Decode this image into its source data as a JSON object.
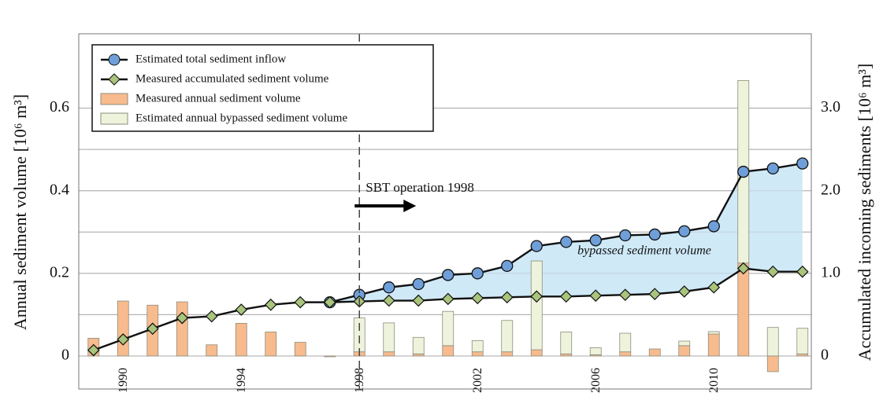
{
  "chart_data": {
    "type": "combo",
    "ylabel": "Annual sediment volume [10⁶ m³]",
    "y2label": "Accumulated incoming sediments [10⁶ m³]",
    "x": [
      1989,
      1990,
      1991,
      1992,
      1993,
      1994,
      1995,
      1996,
      1997,
      1998,
      1999,
      2000,
      2001,
      2002,
      2003,
      2004,
      2005,
      2006,
      2007,
      2008,
      2009,
      2010,
      2011,
      2012,
      2013
    ],
    "xlim": [
      1988.5,
      2013.3
    ],
    "xticks": [
      1990,
      1994,
      1998,
      2002,
      2006,
      2010
    ],
    "ylim": [
      -0.08,
      0.78
    ],
    "yticks": [
      0,
      0.2,
      0.4,
      0.6
    ],
    "minor_yticks": [
      0.1,
      0.3,
      0.5
    ],
    "y2lim": [
      -0.4,
      3.9
    ],
    "y2ticks": [
      0,
      {
        "value": 1,
        "label": "1.0"
      },
      {
        "value": 2,
        "label": "2.0"
      },
      {
        "value": 3,
        "label": "3.0"
      }
    ],
    "grid": true,
    "legend": "top-left",
    "series": [
      {
        "name": "Estimated total sediment inflow",
        "type": "line",
        "marker": "circle",
        "axis": "y2",
        "color": "#6f9fd8",
        "values": [
          null,
          null,
          null,
          null,
          null,
          null,
          null,
          null,
          0.65,
          0.74,
          0.83,
          0.87,
          0.98,
          1.0,
          1.09,
          1.33,
          1.38,
          1.4,
          1.46,
          1.47,
          1.51,
          1.57,
          2.23,
          2.27,
          2.33
        ]
      },
      {
        "name": "Measured accumulated sediment volume",
        "type": "line",
        "marker": "diamond",
        "axis": "y2",
        "color": "#a9c47c",
        "values": [
          0.07,
          0.2,
          0.33,
          0.46,
          0.48,
          0.56,
          0.62,
          0.65,
          0.65,
          0.66,
          0.67,
          0.67,
          0.69,
          0.7,
          0.71,
          0.72,
          0.72,
          0.73,
          0.74,
          0.75,
          0.78,
          0.83,
          1.06,
          1.02,
          1.02
        ]
      },
      {
        "name": "Measured annual sediment volume",
        "type": "bar",
        "axis": "y",
        "color": "#f7bb8e",
        "values": [
          0.043,
          0.133,
          0.123,
          0.131,
          0.027,
          0.079,
          0.058,
          0.033,
          -0.002,
          0.01,
          0.01,
          0.005,
          0.025,
          0.01,
          0.01,
          0.015,
          0.005,
          0.003,
          0.01,
          0.017,
          0.025,
          0.053,
          0.225,
          -0.038,
          0.005
        ]
      },
      {
        "name": "Estimated annual bypassed sediment volume",
        "type": "bar",
        "axis": "y",
        "color": "#eef3dc",
        "values": [
          null,
          null,
          null,
          null,
          null,
          null,
          null,
          null,
          null,
          0.082,
          0.07,
          0.04,
          0.083,
          0.027,
          0.076,
          0.215,
          0.053,
          0.017,
          0.045,
          0,
          0.011,
          0.006,
          0.442,
          0.069,
          0.062
        ]
      }
    ],
    "band": {
      "color": "#cfe9f7",
      "between": [
        0,
        1
      ]
    },
    "annotations": [
      {
        "text": "SBT operation 1998",
        "x": 1998
      },
      {
        "text": "bypassed sediment volume"
      }
    ]
  }
}
